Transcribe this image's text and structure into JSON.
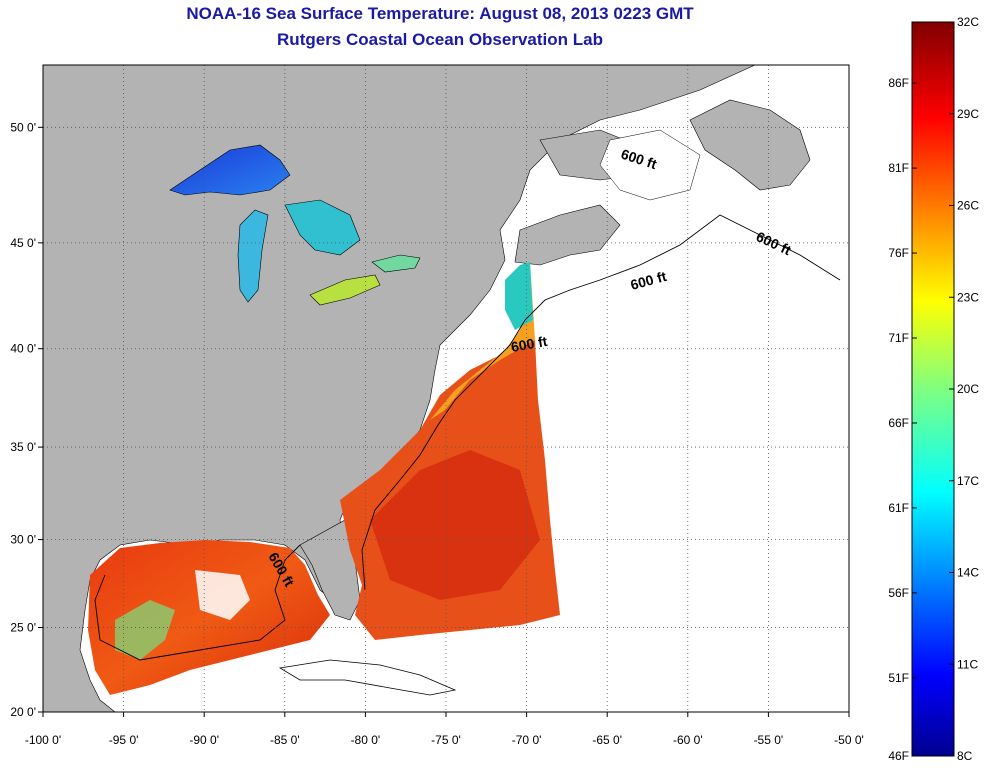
{
  "title": "NOAA-16 Sea Surface Temperature:  August 08, 2013 0223 GMT",
  "subtitle": "Rutgers Coastal Ocean Observation Lab",
  "map": {
    "lon_labels": [
      "-100 0'",
      "-95 0'",
      "-90 0'",
      "-85 0'",
      "-80 0'",
      "-75 0'",
      "-70 0'",
      "-65 0'",
      "-60 0'",
      "-55 0'",
      "-50 0'"
    ],
    "lat_labels": [
      "20 0'",
      "25 0'",
      "30 0'",
      "35 0'",
      "40 0'",
      "45 0'",
      "50 0'"
    ],
    "lon_values": [
      -100,
      -95,
      -90,
      -85,
      -80,
      -75,
      -70,
      -65,
      -60,
      -55,
      -50
    ],
    "lat_values": [
      20,
      25,
      30,
      35,
      40,
      45,
      50
    ],
    "lon_range": [
      -100,
      -50
    ],
    "lat_range": [
      20,
      52.5
    ],
    "isobath_label": "600 ft",
    "colors": {
      "land": "#b3b3b3",
      "no_data": "#ffffff",
      "contour": "#000000"
    }
  },
  "colorbar": {
    "celsius": [
      "32C",
      "29C",
      "26C",
      "23C",
      "20C",
      "17C",
      "14C",
      "11C",
      "8C"
    ],
    "fahrenheit": [
      "86F",
      "81F",
      "76F",
      "71F",
      "66F",
      "61F",
      "56F",
      "51F",
      "46F"
    ],
    "celsius_values": [
      32,
      29,
      26,
      23,
      20,
      17,
      14,
      11,
      8
    ],
    "fahrenheit_values": [
      86,
      81,
      76,
      71,
      66,
      61,
      56,
      51,
      46
    ],
    "range_c": [
      8,
      32
    ]
  }
}
